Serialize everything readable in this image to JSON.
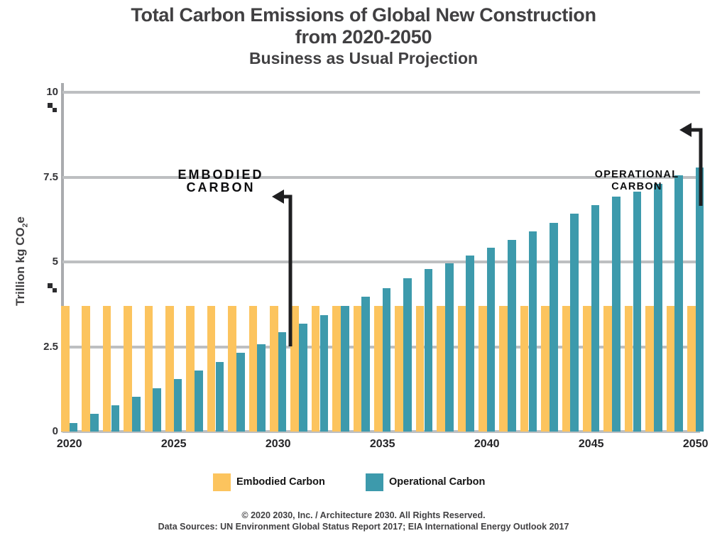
{
  "title": {
    "line1": "Total Carbon Emissions of Global New Construction",
    "line2": "from 2020-2050",
    "line3": "Business as Usual Projection"
  },
  "y_axis": {
    "title_prefix": "Trillion kg CO",
    "title_sub": "2",
    "title_suffix": "e",
    "ticks": [
      {
        "label": "0",
        "value": 0
      },
      {
        "label": "2.5",
        "value": 2.5
      },
      {
        "label": "5",
        "value": 5
      },
      {
        "label": "7.5",
        "value": 7.5
      },
      {
        "label": "10",
        "value": 10
      }
    ]
  },
  "x_axis": {
    "ticks": [
      "2020",
      "2025",
      "2030",
      "2035",
      "2040",
      "2045",
      "2050"
    ]
  },
  "annotations": {
    "embodied": {
      "line1": "EMBODIED",
      "line2": "CARBON"
    },
    "operational": {
      "line1": "OPERATIONAL",
      "line2": "CARBON"
    }
  },
  "legend": {
    "items": [
      {
        "label": "Embodied Carbon",
        "color": "#FCC45E"
      },
      {
        "label": "Operational Carbon",
        "color": "#3D9AAC"
      }
    ]
  },
  "footer": {
    "line1": "© 2020 2030, Inc. / Architecture 2030. All Rights Reserved.",
    "line2": "Data Sources: UN Environment Global Status Report 2017; EIA International Energy Outlook 2017"
  },
  "colors": {
    "embodied": "#FCC45E",
    "operational": "#3D9AAC",
    "gridline": "#BDBFC1",
    "axis": "#A9ABAE",
    "annotation": "#0D0D0F",
    "title_text": "#414042"
  },
  "chart_data": {
    "type": "bar",
    "title": "Total Carbon Emissions of Global New Construction from 2020-2050 — Business as Usual Projection",
    "xlabel": "",
    "ylabel": "Trillion kg CO2e",
    "ylim": [
      0,
      10
    ],
    "y_ticks": [
      0,
      2.5,
      5,
      7.5,
      10
    ],
    "x_tick_labels": [
      "2020",
      "2025",
      "2030",
      "2035",
      "2040",
      "2045",
      "2050"
    ],
    "grid": "horizontal",
    "legend_position": "bottom",
    "categories": [
      "2020",
      "2021",
      "2022",
      "2023",
      "2024",
      "2025",
      "2026",
      "2027",
      "2028",
      "2029",
      "2030",
      "2031",
      "2032",
      "2033",
      "2034",
      "2035",
      "2036",
      "2037",
      "2038",
      "2039",
      "2040",
      "2041",
      "2042",
      "2043",
      "2044",
      "2045",
      "2046",
      "2047",
      "2048",
      "2049",
      "2050"
    ],
    "series": [
      {
        "name": "Embodied Carbon",
        "color": "#FCC45E",
        "values": [
          3.7,
          3.7,
          3.7,
          3.7,
          3.7,
          3.7,
          3.7,
          3.7,
          3.7,
          3.7,
          3.7,
          3.7,
          3.7,
          3.7,
          3.7,
          3.7,
          3.7,
          3.7,
          3.7,
          3.7,
          3.7,
          3.7,
          3.7,
          3.7,
          3.7,
          3.7,
          3.7,
          3.7,
          3.7,
          3.7,
          3.7
        ]
      },
      {
        "name": "Operational Carbon",
        "color": "#3D9AAC",
        "values": [
          0.25,
          0.52,
          0.78,
          1.03,
          1.28,
          1.55,
          1.8,
          2.06,
          2.33,
          2.58,
          2.93,
          3.18,
          3.44,
          3.7,
          3.97,
          4.23,
          4.51,
          4.79,
          4.95,
          5.18,
          5.42,
          5.65,
          5.9,
          6.15,
          6.42,
          6.68,
          6.93,
          7.08,
          7.3,
          7.55,
          7.78
        ]
      }
    ],
    "annotations": [
      {
        "text": "EMBODIED CARBON",
        "points_to": {
          "year": "2030",
          "value": 2.93
        }
      },
      {
        "text": "OPERATIONAL CARBON",
        "points_to": {
          "year": "2050",
          "value": 7.78
        }
      }
    ]
  }
}
